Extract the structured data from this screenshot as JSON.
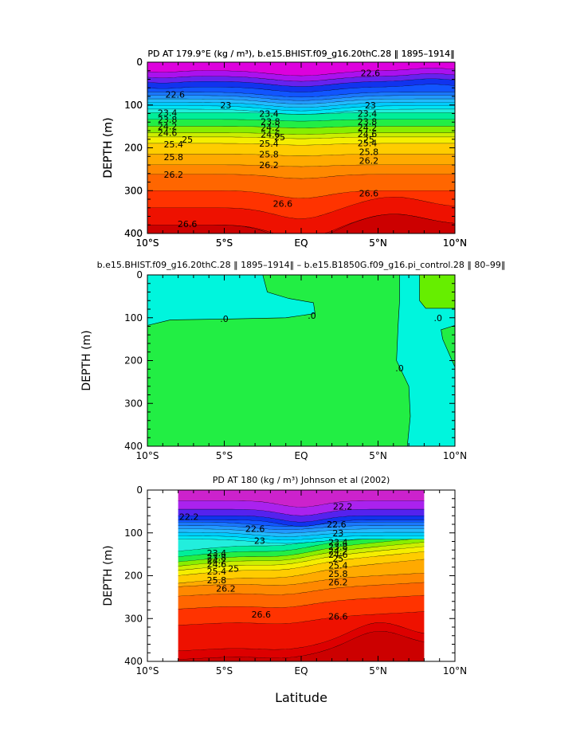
{
  "figure": {
    "xlabel": "Latitude",
    "chart_data": [
      {
        "type": "heatmap",
        "title": "PD AT 179.9°E (kg / m³), b.e15.BHIST.f09_g16.20thC.28 ‖ 1895–1914‖",
        "xlabel": "",
        "ylabel": "DEPTH (m)",
        "xlim": [
          -10,
          10
        ],
        "ylim": [
          400,
          0
        ],
        "x_ticks": [
          "10°S",
          "5°S",
          "EQ",
          "5°N",
          "10°N"
        ],
        "y_ticks": [
          "0",
          "100",
          "200",
          "300",
          "400"
        ],
        "fill_colors": [
          "#dd00dd",
          "#aa11ee",
          "#6622ee",
          "#1133ee",
          "#1155ff",
          "#1a77ff",
          "#2299ff",
          "#22bbff",
          "#00ccff",
          "#00e5f5",
          "#22eedd",
          "#00ee99",
          "#22ee44",
          "#88ee00",
          "#ccee00",
          "#f5ee00",
          "#ffcc00",
          "#ffaa00",
          "#ff8800",
          "#ff6600",
          "#ff3300",
          "#ee1100",
          "#dd0000",
          "#cc0000"
        ],
        "contour_labels": [
          {
            "text": "22.6",
            "lat": -8.2,
            "depth": 75
          },
          {
            "text": "22.6",
            "lat": 4.5,
            "depth": 25
          },
          {
            "text": "23",
            "lat": -4.9,
            "depth": 100
          },
          {
            "text": "23",
            "lat": 4.5,
            "depth": 100
          },
          {
            "text": "23.4",
            "lat": -8.7,
            "depth": 118
          },
          {
            "text": "23.4",
            "lat": -2.1,
            "depth": 120
          },
          {
            "text": "23.4",
            "lat": 4.3,
            "depth": 120
          },
          {
            "text": "23.8",
            "lat": -8.7,
            "depth": 134
          },
          {
            "text": "23.8",
            "lat": -2.0,
            "depth": 139
          },
          {
            "text": "23.8",
            "lat": 4.3,
            "depth": 139
          },
          {
            "text": "24.2",
            "lat": -8.7,
            "depth": 150
          },
          {
            "text": "24.2",
            "lat": -2.0,
            "depth": 153
          },
          {
            "text": "24.2",
            "lat": 4.3,
            "depth": 153
          },
          {
            "text": "24.6",
            "lat": -8.7,
            "depth": 165
          },
          {
            "text": "24.6",
            "lat": -2.0,
            "depth": 168
          },
          {
            "text": "24.6",
            "lat": 4.3,
            "depth": 167
          },
          {
            "text": "25",
            "lat": -7.4,
            "depth": 180
          },
          {
            "text": "25",
            "lat": -1.4,
            "depth": 175
          },
          {
            "text": "25",
            "lat": 4.4,
            "depth": 180
          },
          {
            "text": "25.4",
            "lat": -8.3,
            "depth": 192
          },
          {
            "text": "25.4",
            "lat": -2.1,
            "depth": 190
          },
          {
            "text": "25.4",
            "lat": 4.3,
            "depth": 189
          },
          {
            "text": "25.8",
            "lat": -8.3,
            "depth": 221
          },
          {
            "text": "25.8",
            "lat": -2.1,
            "depth": 215
          },
          {
            "text": "25.8",
            "lat": 4.4,
            "depth": 209
          },
          {
            "text": "26.2",
            "lat": -8.3,
            "depth": 262
          },
          {
            "text": "26.2",
            "lat": -2.1,
            "depth": 240
          },
          {
            "text": "26.2",
            "lat": 4.4,
            "depth": 230
          },
          {
            "text": "26.6",
            "lat": -1.2,
            "depth": 330
          },
          {
            "text": "26.6",
            "lat": 4.4,
            "depth": 306
          },
          {
            "text": "26.6",
            "lat": -7.4,
            "depth": 378
          }
        ]
      },
      {
        "type": "heatmap",
        "title": "b.e15.BHIST.f09_g16.20thC.28 ‖ 1895–1914‖ – b.e15.B1850G.f09_g16.pi_control.28 ‖ 80–99‖",
        "xlabel": "",
        "ylabel": "DEPTH (m)",
        "xlim": [
          -10,
          10
        ],
        "ylim": [
          400,
          0
        ],
        "x_ticks": [
          "10°S",
          "5°S",
          "EQ",
          "5°N",
          "10°N"
        ],
        "y_ticks": [
          "0",
          "100",
          "200",
          "300",
          "400"
        ],
        "fill_colors": [
          "#22ee44",
          "#00f5dd",
          "#66ee00"
        ],
        "contour_labels": [
          {
            "text": ".0",
            "lat": -5.0,
            "depth": 102
          },
          {
            "text": ".0",
            "lat": 0.7,
            "depth": 95
          },
          {
            "text": ".0",
            "lat": 8.9,
            "depth": 100
          },
          {
            "text": ".0",
            "lat": 6.4,
            "depth": 218
          }
        ]
      },
      {
        "type": "heatmap",
        "title": "PD AT 180 (kg / m³) Johnson et al (2002)",
        "xlabel": "Latitude",
        "ylabel": "DEPTH (m)",
        "xlim": [
          -10,
          10
        ],
        "ylim": [
          400,
          0
        ],
        "data_extent_lat": [
          -8,
          8
        ],
        "x_ticks": [
          "10°S",
          "5°S",
          "EQ",
          "5°N",
          "10°N"
        ],
        "y_ticks": [
          "0",
          "100",
          "200",
          "300",
          "400"
        ],
        "fill_colors": [
          "#cc22cc",
          "#aa22ee",
          "#5522ee",
          "#1133ee",
          "#1155ff",
          "#1a77ff",
          "#2299ff",
          "#22bbff",
          "#00ccff",
          "#00e5f5",
          "#22eedd",
          "#00ee99",
          "#22ee44",
          "#88ee00",
          "#ccee00",
          "#f5ee00",
          "#ffcc00",
          "#ffaa00",
          "#ff8800",
          "#ff6600",
          "#ff3300",
          "#ee1100",
          "#dd0000",
          "#cc0000"
        ],
        "contour_labels": [
          {
            "text": "22.2",
            "lat": -7.3,
            "depth": 62
          },
          {
            "text": "22.2",
            "lat": 2.7,
            "depth": 38
          },
          {
            "text": "22.6",
            "lat": -3.0,
            "depth": 90
          },
          {
            "text": "22.6",
            "lat": 2.3,
            "depth": 80
          },
          {
            "text": "23",
            "lat": -2.7,
            "depth": 118
          },
          {
            "text": "23",
            "lat": 2.4,
            "depth": 100
          },
          {
            "text": "23.4",
            "lat": -5.5,
            "depth": 147
          },
          {
            "text": "23.4",
            "lat": 2.4,
            "depth": 122
          },
          {
            "text": "23.8",
            "lat": -5.5,
            "depth": 157
          },
          {
            "text": "23.8",
            "lat": 2.4,
            "depth": 132
          },
          {
            "text": "24.2",
            "lat": -5.5,
            "depth": 165
          },
          {
            "text": "24.2",
            "lat": 2.4,
            "depth": 142
          },
          {
            "text": "24.6",
            "lat": -5.5,
            "depth": 173
          },
          {
            "text": "24.6",
            "lat": 2.4,
            "depth": 151
          },
          {
            "text": "25",
            "lat": -4.4,
            "depth": 183
          },
          {
            "text": "25",
            "lat": 2.4,
            "depth": 160
          },
          {
            "text": "25.4",
            "lat": -5.5,
            "depth": 190
          },
          {
            "text": "25.4",
            "lat": 2.4,
            "depth": 176
          },
          {
            "text": "25.8",
            "lat": -5.5,
            "depth": 210
          },
          {
            "text": "25.8",
            "lat": 2.4,
            "depth": 195
          },
          {
            "text": "26.2",
            "lat": -4.9,
            "depth": 230
          },
          {
            "text": "26.2",
            "lat": 2.4,
            "depth": 215
          },
          {
            "text": "26.6",
            "lat": -2.6,
            "depth": 290
          },
          {
            "text": "26.6",
            "lat": 2.4,
            "depth": 295
          }
        ]
      }
    ]
  }
}
